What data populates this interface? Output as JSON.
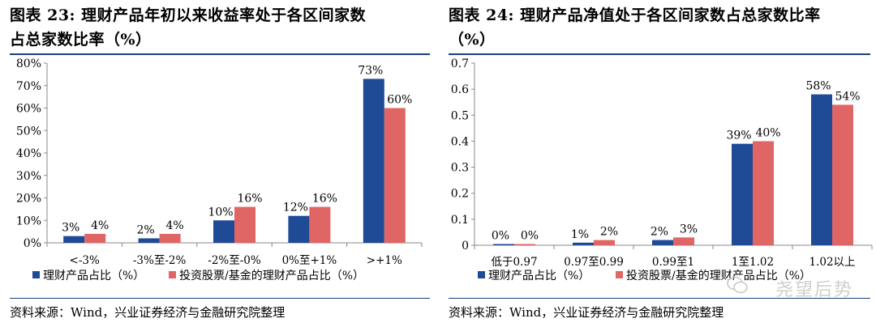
{
  "left": {
    "title_line1": "图表 23:  理财产品年初以来收益率处于各区间家数",
    "title_line2": "占总家数比率（%）",
    "source": "资料来源：Wind，兴业证券经济与金融研究院整理"
  },
  "right": {
    "title_line1": "图表 24:  理财产品净值处于各区间家数占总家数比率",
    "title_line2": "（%）",
    "source": "资料来源：Wind，兴业证券经济与金融研究院整理"
  },
  "watermark": "尧望后势",
  "colors": {
    "series1": "#1f4a96",
    "series2": "#e06666",
    "axis": "#888888",
    "rule": "#1c3f78"
  },
  "chart_data": [
    {
      "type": "bar",
      "categories": [
        "<-3%",
        "-3%至-2%",
        "-2%至-0%",
        "0%至+1%",
        ">+1%"
      ],
      "series": [
        {
          "name": "理财产品占比（%）",
          "values": [
            3,
            2,
            10,
            12,
            73
          ],
          "labels": [
            "3%",
            "2%",
            "10%",
            "12%",
            "73%"
          ]
        },
        {
          "name": "投资股票/基金的理财产品占比（%）",
          "values": [
            4,
            4,
            16,
            16,
            60
          ],
          "labels": [
            "4%",
            "4%",
            "16%",
            "16%",
            "60%"
          ]
        }
      ],
      "ylim": [
        0,
        80
      ],
      "yticks": [
        0,
        10,
        20,
        30,
        40,
        50,
        60,
        70,
        80
      ],
      "ytick_labels": [
        "0%",
        "10%",
        "20%",
        "30%",
        "40%",
        "50%",
        "60%",
        "70%",
        "80%"
      ],
      "legend_position": "bottom",
      "grid": false
    },
    {
      "type": "bar",
      "categories": [
        "低于0.97",
        "0.97至0.99",
        "0.99至1",
        "1至1.02",
        "1.02以上"
      ],
      "series": [
        {
          "name": "理财产品占比（%）",
          "values": [
            0.0,
            0.01,
            0.02,
            0.39,
            0.58
          ],
          "labels": [
            "0%",
            "1%",
            "2%",
            "39%",
            "58%"
          ]
        },
        {
          "name": "投资股票/基金的理财产品占比（%）",
          "values": [
            0.0,
            0.02,
            0.03,
            0.4,
            0.54
          ],
          "labels": [
            "0%",
            "2%",
            "3%",
            "40%",
            "54%"
          ]
        }
      ],
      "ylim": [
        0,
        0.7
      ],
      "yticks": [
        0,
        0.1,
        0.2,
        0.3,
        0.4,
        0.5,
        0.6,
        0.7
      ],
      "ytick_labels": [
        "0",
        "0.1",
        "0.2",
        "0.3",
        "0.4",
        "0.5",
        "0.6",
        "0.7"
      ],
      "legend_position": "bottom",
      "grid": false
    }
  ]
}
